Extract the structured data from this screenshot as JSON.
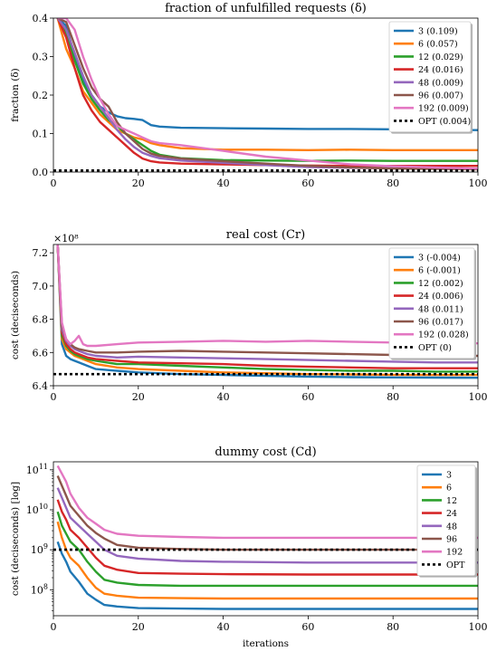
{
  "colors": {
    "3": "#1f77b4",
    "6": "#ff7f0e",
    "12": "#2ca02c",
    "24": "#d62728",
    "48": "#9467bd",
    "96": "#8c564b",
    "192": "#e377c2",
    "OPT": "#000000"
  },
  "chart_data": [
    {
      "type": "line",
      "title": "fraction of unfulfilled requests (δ)",
      "xlabel": "",
      "ylabel": "fraction (δ)",
      "xlim": [
        0,
        100
      ],
      "ylim": [
        0,
        0.4
      ],
      "xticks": [
        "0",
        "20",
        "40",
        "60",
        "80",
        "100"
      ],
      "yticks": [
        "0.0",
        "0.1",
        "0.2",
        "0.3",
        "0.4"
      ],
      "ytick_values": [
        0,
        0.1,
        0.2,
        0.3,
        0.4
      ],
      "grid": false,
      "legend": "upper-right",
      "series": [
        {
          "name": "3 (0.109)",
          "key": "3",
          "x": [
            1,
            3,
            5,
            7,
            9,
            11,
            13,
            15,
            17,
            19,
            21,
            23,
            25,
            30,
            40,
            50,
            60,
            70,
            80,
            90,
            100
          ],
          "y": [
            0.4,
            0.38,
            0.3,
            0.24,
            0.2,
            0.17,
            0.155,
            0.145,
            0.14,
            0.138,
            0.135,
            0.122,
            0.118,
            0.115,
            0.114,
            0.113,
            0.112,
            0.112,
            0.111,
            0.11,
            0.109
          ]
        },
        {
          "name": "6 (0.057)",
          "key": "6",
          "x": [
            1,
            3,
            5,
            7,
            9,
            11,
            13,
            15,
            17,
            19,
            21,
            23,
            25,
            30,
            40,
            50,
            60,
            70,
            80,
            90,
            100
          ],
          "y": [
            0.4,
            0.32,
            0.27,
            0.21,
            0.18,
            0.15,
            0.13,
            0.11,
            0.1,
            0.09,
            0.085,
            0.075,
            0.07,
            0.062,
            0.058,
            0.058,
            0.057,
            0.058,
            0.057,
            0.057,
            0.057
          ]
        },
        {
          "name": "12 (0.029)",
          "key": "12",
          "x": [
            1,
            3,
            5,
            7,
            9,
            11,
            13,
            15,
            17,
            19,
            21,
            23,
            25,
            30,
            40,
            50,
            60,
            70,
            80,
            90,
            100
          ],
          "y": [
            0.4,
            0.36,
            0.29,
            0.23,
            0.19,
            0.16,
            0.135,
            0.12,
            0.1,
            0.085,
            0.07,
            0.055,
            0.045,
            0.036,
            0.031,
            0.03,
            0.029,
            0.03,
            0.029,
            0.029,
            0.029
          ]
        },
        {
          "name": "24 (0.016)",
          "key": "24",
          "x": [
            1,
            3,
            5,
            7,
            9,
            11,
            13,
            15,
            17,
            19,
            21,
            23,
            25,
            30,
            40,
            50,
            60,
            70,
            80,
            90,
            100
          ],
          "y": [
            0.4,
            0.35,
            0.27,
            0.2,
            0.16,
            0.13,
            0.11,
            0.09,
            0.07,
            0.05,
            0.035,
            0.028,
            0.025,
            0.022,
            0.02,
            0.018,
            0.017,
            0.016,
            0.016,
            0.016,
            0.016
          ]
        },
        {
          "name": "48 (0.009)",
          "key": "48",
          "x": [
            1,
            3,
            5,
            7,
            9,
            11,
            13,
            15,
            17,
            19,
            21,
            23,
            25,
            30,
            40,
            50,
            60,
            70,
            80,
            90,
            100
          ],
          "y": [
            0.4,
            0.37,
            0.31,
            0.25,
            0.2,
            0.17,
            0.14,
            0.11,
            0.085,
            0.065,
            0.05,
            0.042,
            0.036,
            0.03,
            0.024,
            0.018,
            0.013,
            0.011,
            0.01,
            0.009,
            0.009
          ]
        },
        {
          "name": "96 (0.007)",
          "key": "96",
          "x": [
            1,
            3,
            5,
            7,
            9,
            11,
            13,
            15,
            17,
            19,
            21,
            23,
            25,
            30,
            40,
            50,
            60,
            70,
            80,
            90,
            100
          ],
          "y": [
            0.4,
            0.39,
            0.33,
            0.27,
            0.22,
            0.19,
            0.17,
            0.13,
            0.1,
            0.08,
            0.06,
            0.048,
            0.042,
            0.035,
            0.028,
            0.022,
            0.016,
            0.012,
            0.009,
            0.008,
            0.007
          ]
        },
        {
          "name": "192 (0.009)",
          "key": "192",
          "x": [
            1,
            3,
            5,
            7,
            9,
            11,
            13,
            15,
            17,
            19,
            21,
            23,
            25,
            30,
            40,
            50,
            60,
            70,
            80,
            90,
            100
          ],
          "y": [
            0.4,
            0.4,
            0.37,
            0.3,
            0.24,
            0.19,
            0.15,
            0.12,
            0.11,
            0.1,
            0.09,
            0.08,
            0.075,
            0.07,
            0.055,
            0.04,
            0.03,
            0.02,
            0.015,
            0.012,
            0.009
          ]
        },
        {
          "name": "OPT (0.004)",
          "key": "OPT",
          "dashed": true,
          "x": [
            0,
            100
          ],
          "y": [
            0.004,
            0.004
          ]
        }
      ]
    },
    {
      "type": "line",
      "title": "real cost (Cr)",
      "xlabel": "",
      "ylabel": "cost (deciseconds)",
      "multiplier": "×10⁸",
      "xlim": [
        0,
        100
      ],
      "ylim": [
        6.4,
        7.25
      ],
      "xticks": [
        "0",
        "20",
        "40",
        "60",
        "80",
        "100"
      ],
      "yticks": [
        "6.4",
        "6.6",
        "6.8",
        "7.0",
        "7.2"
      ],
      "ytick_values": [
        6.4,
        6.6,
        6.8,
        7.0,
        7.2
      ],
      "grid": false,
      "legend": "upper-right",
      "series": [
        {
          "name": "3 (-0.004)",
          "key": "3",
          "x": [
            1,
            2,
            3,
            4,
            5,
            6,
            8,
            10,
            15,
            20,
            30,
            40,
            50,
            60,
            70,
            80,
            90,
            100
          ],
          "y": [
            7.25,
            6.65,
            6.58,
            6.56,
            6.55,
            6.54,
            6.52,
            6.5,
            6.49,
            6.48,
            6.47,
            6.465,
            6.46,
            6.455,
            6.452,
            6.45,
            6.449,
            6.448
          ]
        },
        {
          "name": "6 (-0.001)",
          "key": "6",
          "x": [
            1,
            2,
            3,
            4,
            5,
            6,
            8,
            10,
            15,
            20,
            30,
            40,
            50,
            60,
            70,
            80,
            90,
            100
          ],
          "y": [
            7.25,
            6.68,
            6.62,
            6.6,
            6.58,
            6.57,
            6.55,
            6.53,
            6.51,
            6.5,
            6.49,
            6.48,
            6.475,
            6.47,
            6.468,
            6.466,
            6.465,
            6.465
          ]
        },
        {
          "name": "12 (0.002)",
          "key": "12",
          "x": [
            1,
            2,
            3,
            4,
            5,
            6,
            8,
            10,
            15,
            20,
            30,
            40,
            50,
            60,
            70,
            80,
            90,
            100
          ],
          "y": [
            7.25,
            6.7,
            6.64,
            6.61,
            6.59,
            6.58,
            6.56,
            6.55,
            6.53,
            6.53,
            6.52,
            6.51,
            6.5,
            6.495,
            6.49,
            6.49,
            6.485,
            6.485
          ]
        },
        {
          "name": "24 (0.006)",
          "key": "24",
          "x": [
            1,
            2,
            3,
            4,
            5,
            6,
            8,
            10,
            15,
            20,
            30,
            40,
            50,
            60,
            70,
            80,
            90,
            100
          ],
          "y": [
            7.25,
            6.72,
            6.65,
            6.62,
            6.6,
            6.59,
            6.57,
            6.56,
            6.55,
            6.54,
            6.535,
            6.53,
            6.52,
            6.515,
            6.51,
            6.505,
            6.505,
            6.505
          ]
        },
        {
          "name": "48 (0.011)",
          "key": "48",
          "x": [
            1,
            2,
            3,
            4,
            5,
            6,
            8,
            10,
            15,
            20,
            30,
            40,
            50,
            60,
            70,
            80,
            90,
            100
          ],
          "y": [
            7.25,
            6.74,
            6.67,
            6.64,
            6.62,
            6.61,
            6.59,
            6.58,
            6.57,
            6.575,
            6.57,
            6.565,
            6.56,
            6.555,
            6.55,
            6.545,
            6.54,
            6.54
          ]
        },
        {
          "name": "96 (0.017)",
          "key": "96",
          "x": [
            1,
            2,
            3,
            4,
            5,
            6,
            8,
            10,
            15,
            20,
            30,
            40,
            50,
            60,
            70,
            80,
            90,
            100
          ],
          "y": [
            7.25,
            6.76,
            6.68,
            6.65,
            6.63,
            6.62,
            6.61,
            6.6,
            6.6,
            6.605,
            6.61,
            6.605,
            6.6,
            6.595,
            6.59,
            6.585,
            6.58,
            6.58
          ]
        },
        {
          "name": "192 (0.028)",
          "key": "192",
          "x": [
            1,
            2,
            3,
            4,
            5,
            6,
            7,
            8,
            10,
            15,
            20,
            30,
            40,
            50,
            60,
            70,
            80,
            90,
            100
          ],
          "y": [
            7.25,
            6.78,
            6.68,
            6.65,
            6.67,
            6.7,
            6.65,
            6.64,
            6.64,
            6.65,
            6.66,
            6.665,
            6.67,
            6.665,
            6.67,
            6.665,
            6.66,
            6.66,
            6.655
          ]
        },
        {
          "name": "OPT (0)",
          "key": "OPT",
          "dashed": true,
          "x": [
            0,
            100
          ],
          "y": [
            6.47,
            6.47
          ]
        }
      ]
    },
    {
      "type": "line",
      "title": "dummy cost (Cd)",
      "xlabel": "iterations",
      "ylabel": "cost (deciseconds) [log]",
      "log_y": true,
      "xlim": [
        0,
        100
      ],
      "ylim_log10": [
        7.35,
        11.2
      ],
      "xticks": [
        "0",
        "20",
        "40",
        "60",
        "80",
        "100"
      ],
      "yticks": [
        "10^8",
        "10^9",
        "10^10",
        "10^11"
      ],
      "ytick_values": [
        8,
        9,
        10,
        11
      ],
      "grid": false,
      "legend": "upper-right",
      "series": [
        {
          "name": "3",
          "key": "3",
          "x": [
            1,
            2,
            3,
            4,
            6,
            8,
            10,
            12,
            15,
            20,
            30,
            40,
            60,
            80,
            100
          ],
          "y_log10": [
            9.2,
            8.9,
            8.7,
            8.45,
            8.2,
            7.9,
            7.75,
            7.62,
            7.58,
            7.54,
            7.53,
            7.52,
            7.52,
            7.52,
            7.52
          ]
        },
        {
          "name": "6",
          "key": "6",
          "x": [
            1,
            2,
            3,
            4,
            6,
            8,
            10,
            12,
            15,
            20,
            30,
            40,
            60,
            80,
            100
          ],
          "y_log10": [
            9.7,
            9.3,
            9.0,
            8.8,
            8.6,
            8.3,
            8.05,
            7.9,
            7.85,
            7.8,
            7.79,
            7.78,
            7.78,
            7.78,
            7.78
          ]
        },
        {
          "name": "12",
          "key": "12",
          "x": [
            1,
            2,
            3,
            4,
            6,
            8,
            10,
            12,
            15,
            20,
            30,
            40,
            60,
            80,
            100
          ],
          "y_log10": [
            9.95,
            9.6,
            9.4,
            9.2,
            9.0,
            8.7,
            8.45,
            8.25,
            8.18,
            8.12,
            8.1,
            8.1,
            8.1,
            8.1,
            8.1
          ]
        },
        {
          "name": "24",
          "key": "24",
          "x": [
            1,
            2,
            3,
            4,
            6,
            8,
            10,
            12,
            15,
            20,
            30,
            40,
            60,
            80,
            100
          ],
          "y_log10": [
            10.25,
            9.95,
            9.75,
            9.5,
            9.3,
            9.05,
            8.8,
            8.6,
            8.5,
            8.42,
            8.4,
            8.39,
            8.38,
            8.38,
            8.38
          ]
        },
        {
          "name": "48",
          "key": "48",
          "x": [
            1,
            2,
            3,
            4,
            6,
            8,
            10,
            12,
            15,
            20,
            30,
            40,
            60,
            80,
            100
          ],
          "y_log10": [
            10.55,
            10.3,
            10.05,
            9.8,
            9.6,
            9.4,
            9.2,
            9.0,
            8.85,
            8.78,
            8.72,
            8.7,
            8.68,
            8.68,
            8.68
          ]
        },
        {
          "name": "96",
          "key": "96",
          "x": [
            1,
            2,
            3,
            4,
            6,
            8,
            10,
            12,
            15,
            20,
            30,
            40,
            60,
            80,
            100
          ],
          "y_log10": [
            10.85,
            10.6,
            10.35,
            10.1,
            9.85,
            9.6,
            9.42,
            9.28,
            9.12,
            9.05,
            9.02,
            9.0,
            9.0,
            9.0,
            9.0
          ]
        },
        {
          "name": "192",
          "key": "192",
          "x": [
            1,
            2,
            3,
            4,
            6,
            8,
            10,
            12,
            15,
            20,
            30,
            40,
            60,
            80,
            100
          ],
          "y_log10": [
            11.1,
            10.9,
            10.7,
            10.4,
            10.05,
            9.8,
            9.65,
            9.5,
            9.4,
            9.35,
            9.32,
            9.3,
            9.3,
            9.3,
            9.3
          ]
        },
        {
          "name": "OPT",
          "key": "OPT",
          "dashed": true,
          "x": [
            0,
            100
          ],
          "y_log10": [
            9.0,
            9.0
          ]
        }
      ]
    }
  ]
}
